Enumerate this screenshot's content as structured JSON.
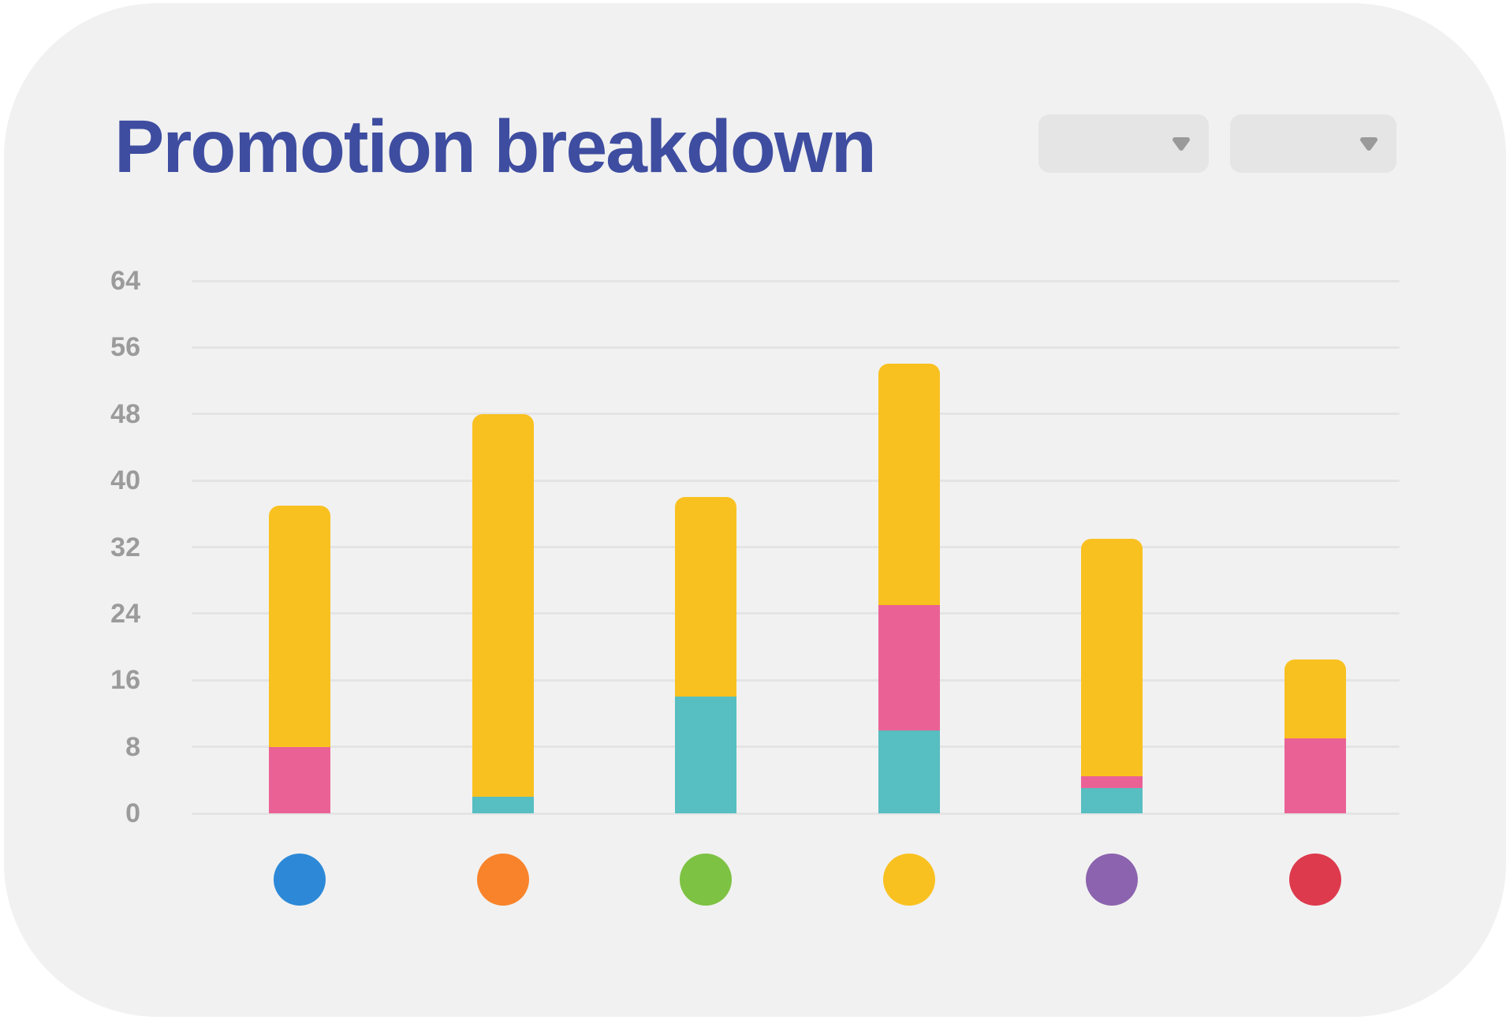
{
  "title": "Promotion breakdown",
  "header": {
    "dropdowns": [
      {
        "name": "filter-dropdown-1",
        "selected_value": "",
        "state": "collapsed"
      },
      {
        "name": "filter-dropdown-2",
        "selected_value": "",
        "state": "collapsed"
      }
    ]
  },
  "colors": {
    "card_background": "#F1F1F1",
    "title": "#3E4DA0",
    "axis_label": "#9B9B9B",
    "gridline": "#E4E4E4",
    "dropdown_background": "#E5E5E5",
    "dropdown_caret": "#9A9A9A"
  },
  "chart_data": {
    "type": "bar",
    "variant": "stacked",
    "title": "Promotion breakdown",
    "categories": [
      "blue-dot",
      "orange-dot",
      "green-dot",
      "yellow-dot",
      "purple-dot",
      "red-dot"
    ],
    "category_dot_colors": [
      "#2D89D8",
      "#F8832B",
      "#7DC243",
      "#F9C120",
      "#8B63AE",
      "#DD3A4D"
    ],
    "series": [
      {
        "name": "teal",
        "color": "#57BEC1",
        "values": [
          0,
          2,
          14,
          10,
          3,
          0
        ]
      },
      {
        "name": "pink",
        "color": "#EA6295",
        "values": [
          8,
          0,
          0,
          15,
          1.5,
          9
        ]
      },
      {
        "name": "yellow",
        "color": "#F9C120",
        "values": [
          29,
          46,
          24,
          29,
          28.5,
          9.5
        ]
      }
    ],
    "stack_order_bottom_to_top": [
      "teal",
      "pink",
      "yellow"
    ],
    "totals": [
      37,
      48,
      38,
      54,
      33,
      18.5
    ],
    "xlabel": "",
    "ylabel": "",
    "ylim": [
      0,
      64
    ],
    "yticks": [
      0,
      8,
      16,
      24,
      32,
      40,
      48,
      56,
      64
    ],
    "grid": true,
    "legend_position": "none"
  }
}
